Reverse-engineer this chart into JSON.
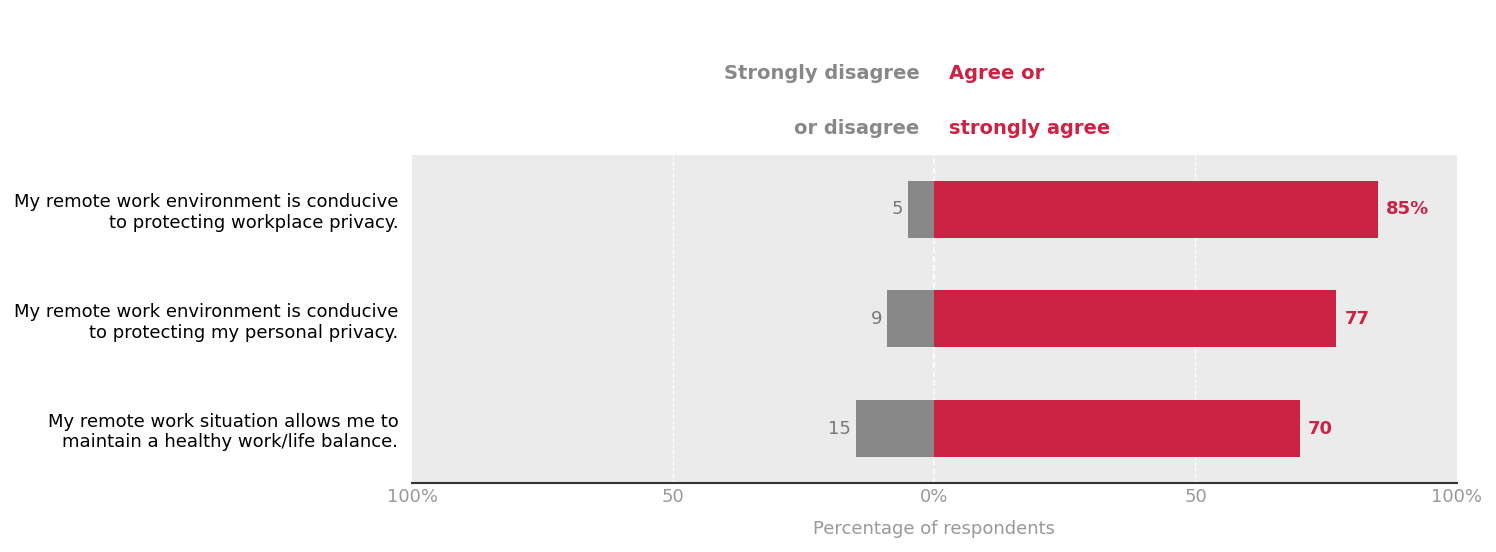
{
  "categories": [
    "My remote work environment is conducive\nto protecting workplace privacy.",
    "My remote work environment is conducive\nto protecting my personal privacy.",
    "My remote work situation allows me to\nmaintain a healthy work/life balance."
  ],
  "disagree_values": [
    5,
    9,
    15
  ],
  "agree_values": [
    85,
    77,
    70
  ],
  "disagree_color": "#888888",
  "agree_color": "#cc2244",
  "bar_bg_color": "#ebebeb",
  "legend_disagree_label": "Strongly disagree\nor disagree",
  "legend_agree_label": "Agree or\nstrongly agree",
  "xlabel": "Percentage of respondents",
  "xlim": 100,
  "first_bar_label_suffix": "%",
  "label_fontsize": 13,
  "tick_fontsize": 13,
  "legend_fontsize": 14,
  "bar_height": 0.52
}
